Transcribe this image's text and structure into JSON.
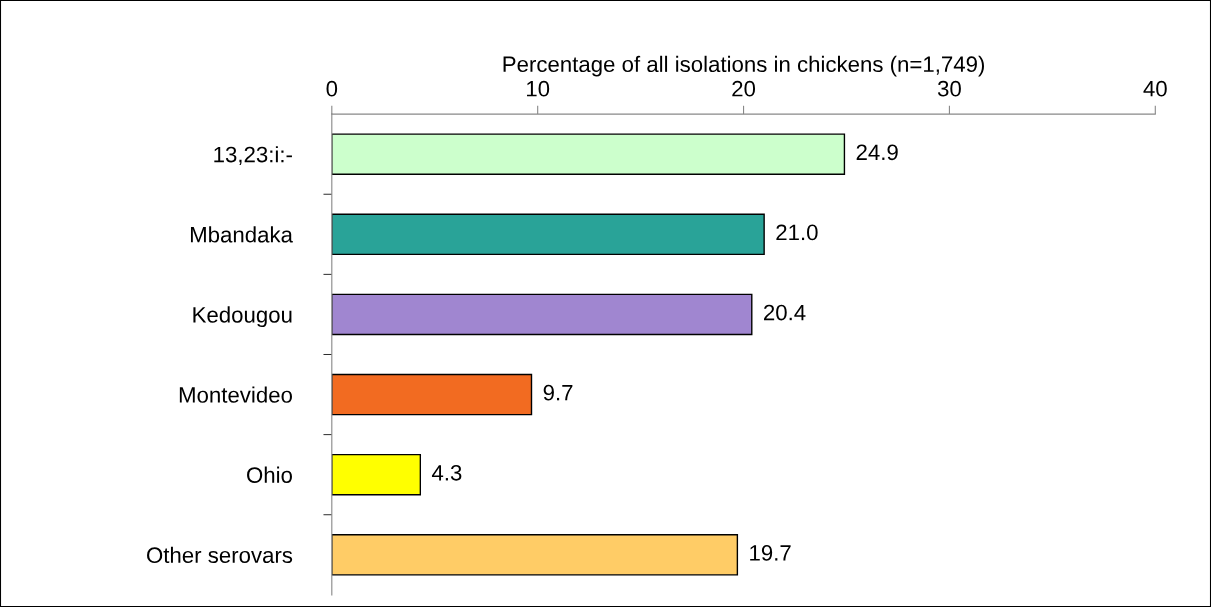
{
  "chart_data": {
    "type": "bar",
    "orientation": "horizontal",
    "xlabel": "Percentage of all isolations in chickens (n=1,749)",
    "categories": [
      "13,23:i:-",
      "Mbandaka",
      "Kedougou",
      "Montevideo",
      "Ohio",
      "Other serovars"
    ],
    "values": [
      24.9,
      21.0,
      20.4,
      9.7,
      4.3,
      19.7
    ],
    "colors": [
      "#ccffcc",
      "#29a398",
      "#a086d0",
      "#f26b21",
      "#ffff00",
      "#ffcc66"
    ],
    "value_labels": [
      "24.9",
      "21.0",
      "20.4",
      "9.7",
      "4.3",
      "19.7"
    ],
    "xlim": [
      0,
      40
    ],
    "xticks": [
      0,
      10,
      20,
      30,
      40
    ],
    "grid": false
  }
}
